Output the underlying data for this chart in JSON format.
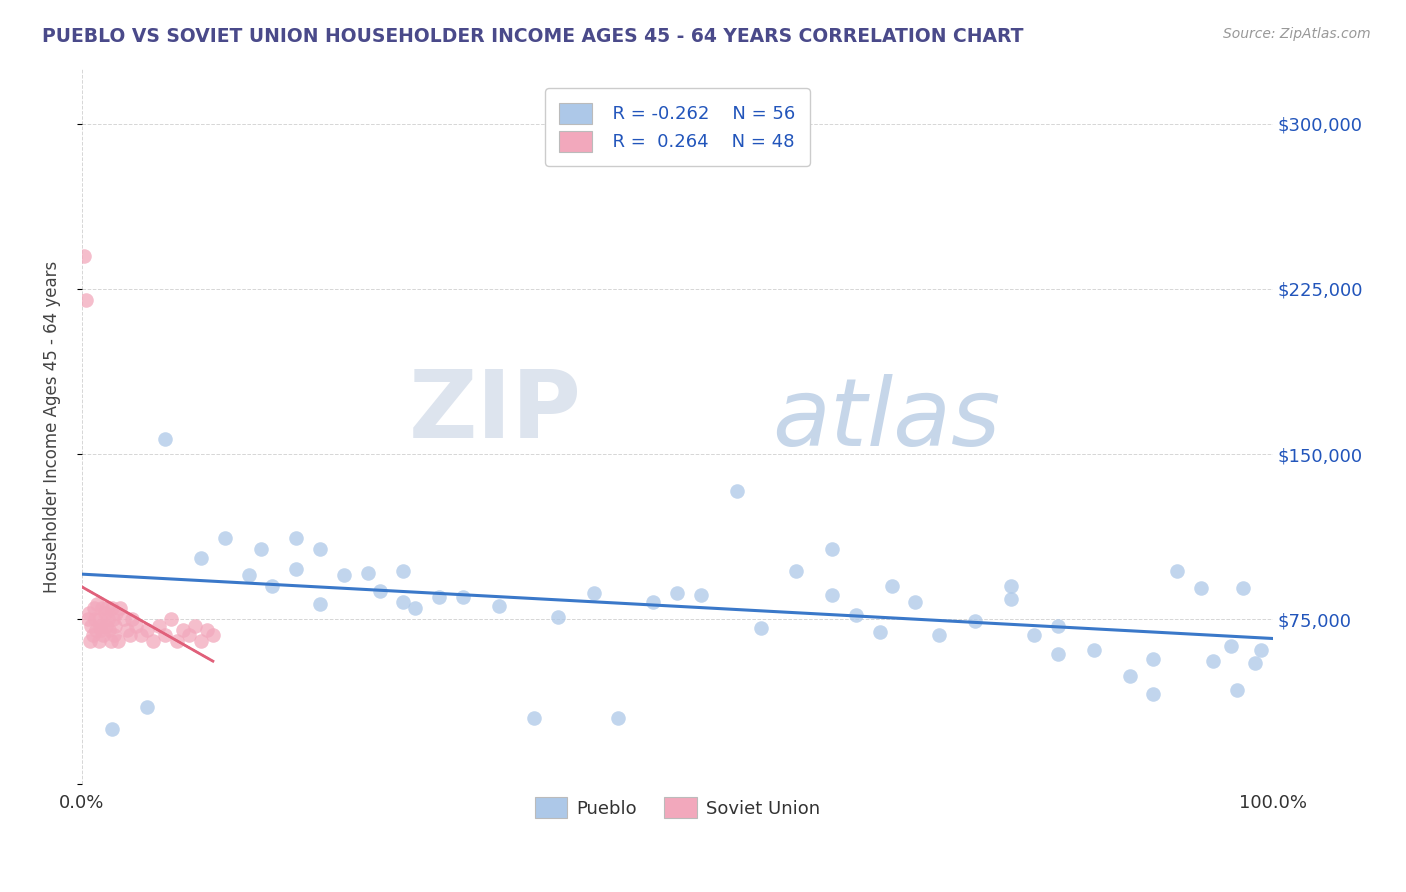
{
  "title": "PUEBLO VS SOVIET UNION HOUSEHOLDER INCOME AGES 45 - 64 YEARS CORRELATION CHART",
  "source": "Source: ZipAtlas.com",
  "ylabel": "Householder Income Ages 45 - 64 years",
  "xlim": [
    0.0,
    100.0
  ],
  "ylim": [
    0,
    325000
  ],
  "yticks": [
    0,
    75000,
    150000,
    225000,
    300000
  ],
  "ytick_labels": [
    "",
    "$75,000",
    "$150,000",
    "$225,000",
    "$300,000"
  ],
  "xtick_labels": [
    "0.0%",
    "100.0%"
  ],
  "legend_r1": "R = -0.262",
  "legend_n1": "N = 56",
  "legend_r2": "R =  0.264",
  "legend_n2": "N = 48",
  "pueblo_color": "#adc8e8",
  "soviet_color": "#f2a8bc",
  "pueblo_line_color": "#3a78c9",
  "soviet_line_color": "#e0607a",
  "title_color": "#4a4a8a",
  "source_color": "#999999",
  "background_color": "#ffffff",
  "grid_color": "#cccccc",
  "pueblo_x": [
    2.5,
    5.5,
    7.0,
    10.0,
    12.0,
    14.0,
    15.0,
    16.0,
    18.0,
    20.0,
    22.0,
    24.0,
    25.0,
    27.0,
    28.0,
    30.0,
    32.0,
    35.0,
    38.0,
    40.0,
    43.0,
    45.0,
    48.0,
    50.0,
    52.0,
    55.0,
    57.0,
    60.0,
    63.0,
    65.0,
    67.0,
    68.0,
    70.0,
    72.0,
    75.0,
    78.0,
    80.0,
    82.0,
    85.0,
    88.0,
    90.0,
    92.0,
    94.0,
    95.0,
    96.5,
    97.5,
    99.0,
    20.0,
    63.0,
    78.0,
    82.0,
    90.0,
    97.0,
    98.5,
    18.0,
    27.0
  ],
  "pueblo_y": [
    25000,
    35000,
    157000,
    103000,
    112000,
    95000,
    107000,
    90000,
    112000,
    82000,
    95000,
    96000,
    88000,
    83000,
    80000,
    85000,
    85000,
    81000,
    30000,
    76000,
    87000,
    30000,
    83000,
    87000,
    86000,
    133000,
    71000,
    97000,
    86000,
    77000,
    69000,
    90000,
    83000,
    68000,
    74000,
    84000,
    68000,
    59000,
    61000,
    49000,
    57000,
    97000,
    89000,
    56000,
    63000,
    89000,
    61000,
    107000,
    107000,
    90000,
    72000,
    41000,
    43000,
    55000,
    98000,
    97000
  ],
  "soviet_x": [
    0.2,
    0.3,
    0.5,
    0.6,
    0.7,
    0.8,
    0.9,
    1.0,
    1.1,
    1.2,
    1.3,
    1.4,
    1.5,
    1.6,
    1.7,
    1.8,
    1.9,
    2.0,
    2.1,
    2.2,
    2.3,
    2.4,
    2.5,
    2.6,
    2.7,
    2.8,
    2.9,
    3.0,
    3.2,
    3.5,
    3.8,
    4.0,
    4.2,
    4.5,
    5.0,
    5.5,
    6.0,
    6.5,
    7.0,
    7.5,
    8.0,
    8.5,
    9.0,
    9.5,
    10.0,
    10.5,
    11.0,
    1.5
  ],
  "soviet_y": [
    240000,
    220000,
    75000,
    78000,
    65000,
    72000,
    68000,
    80000,
    75000,
    70000,
    82000,
    65000,
    75000,
    70000,
    80000,
    68000,
    78000,
    72000,
    80000,
    75000,
    70000,
    65000,
    80000,
    75000,
    68000,
    72000,
    78000,
    65000,
    80000,
    75000,
    70000,
    68000,
    75000,
    72000,
    68000,
    70000,
    65000,
    72000,
    68000,
    75000,
    65000,
    70000,
    68000,
    72000,
    65000,
    70000,
    68000,
    72000
  ]
}
